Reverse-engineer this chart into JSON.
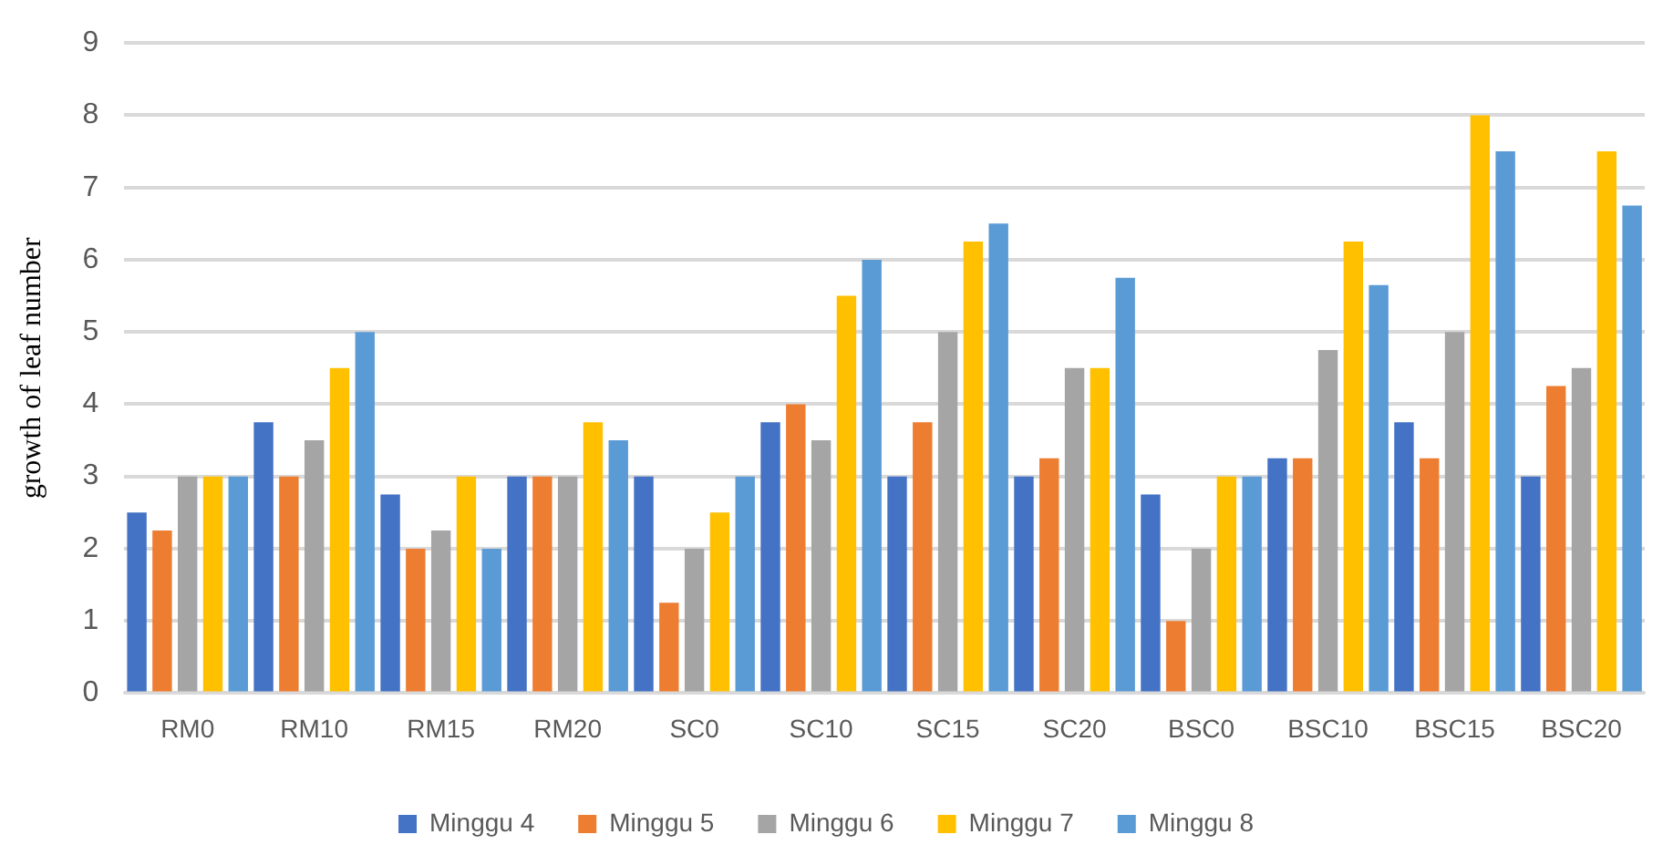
{
  "chart_data": {
    "type": "bar",
    "ylabel": "growth of leaf number",
    "categories": [
      "RM0",
      "RM10",
      "RM15",
      "RM20",
      "SC0",
      "SC10",
      "SC15",
      "SC20",
      "BSC0",
      "BSC10",
      "BSC15",
      "BSC20"
    ],
    "series": [
      {
        "name": "Minggu 4",
        "color": "#4472c4",
        "values": [
          2.5,
          3.75,
          2.75,
          3,
          3,
          3.75,
          3,
          3,
          2.75,
          3.25,
          3.75,
          3
        ]
      },
      {
        "name": "Minggu 5",
        "color": "#ed7d31",
        "values": [
          2.25,
          3,
          2,
          3,
          1.25,
          4,
          3.75,
          3.25,
          1,
          3.25,
          3.25,
          4.25
        ]
      },
      {
        "name": "Minggu 6",
        "color": "#a5a5a5",
        "values": [
          3,
          3.5,
          2.25,
          3,
          2,
          3.5,
          5,
          4.5,
          2,
          4.75,
          5,
          4.5
        ]
      },
      {
        "name": "Minggu 7",
        "color": "#ffc000",
        "values": [
          3,
          4.5,
          3,
          3.75,
          2.5,
          5.5,
          6.25,
          4.5,
          3,
          6.25,
          8,
          7.5
        ]
      },
      {
        "name": "Minggu 8",
        "color": "#5b9bd5",
        "values": [
          3,
          5,
          2,
          3.5,
          3,
          6,
          6.5,
          5.75,
          3,
          5.65,
          7.5,
          6.75
        ]
      }
    ],
    "ylim": [
      0,
      9
    ],
    "yticks": [
      0,
      1,
      2,
      3,
      4,
      5,
      6,
      7,
      8,
      9
    ],
    "grid": "y",
    "legend": "bottom"
  }
}
